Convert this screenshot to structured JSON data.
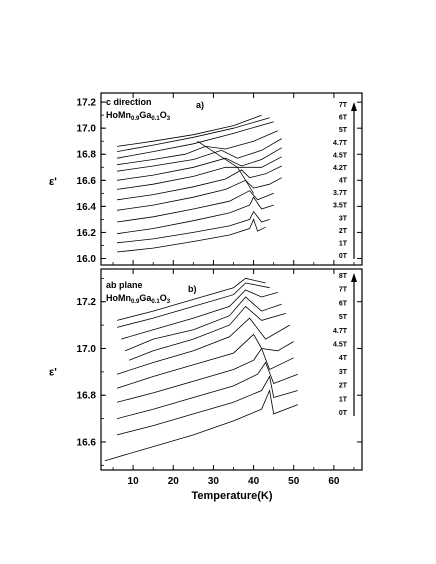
{
  "chart_data": [
    {
      "type": "line",
      "panel_label": "a)",
      "title_line1": "c direction",
      "title_formula": "HoMn0.9Ga0.1O3",
      "formula_parts": [
        [
          "HoMn",
          ""
        ],
        [
          "0.9",
          "sub"
        ],
        [
          "Ga",
          ""
        ],
        [
          "0.1",
          "sub"
        ],
        [
          "O",
          ""
        ],
        [
          "3",
          "sub"
        ]
      ],
      "xlabel": "",
      "ylabel": "ε'",
      "xlim": [
        2,
        67
      ],
      "ylim": [
        15.95,
        17.27
      ],
      "y_ticks": [
        "16.0",
        "16.2",
        "16.4",
        "16.6",
        "16.8",
        "17.0",
        "17.2"
      ],
      "x_ticks": [
        "10",
        "20",
        "30",
        "40",
        "50",
        "60"
      ],
      "field_labels": [
        "7T",
        "6T",
        "5T",
        "4.7T",
        "4.5T",
        "4.2T",
        "4T",
        "3.7T",
        "3.5T",
        "3T",
        "2T",
        "1T",
        "0T"
      ],
      "series": [
        {
          "name": "7T",
          "x": [
            6,
            15,
            25,
            35,
            42
          ],
          "y": [
            16.86,
            16.9,
            16.95,
            17.02,
            17.1
          ]
        },
        {
          "name": "6T",
          "x": [
            6,
            15,
            25,
            35,
            44
          ],
          "y": [
            16.82,
            16.87,
            16.93,
            17.0,
            17.08
          ]
        },
        {
          "name": "5T",
          "x": [
            6,
            15,
            25,
            35,
            45
          ],
          "y": [
            16.77,
            16.82,
            16.88,
            16.96,
            17.05
          ]
        },
        {
          "name": "4.7T",
          "x": [
            6,
            15,
            23,
            28,
            33,
            40,
            46
          ],
          "y": [
            16.72,
            16.76,
            16.8,
            16.86,
            16.84,
            16.9,
            16.98
          ]
        },
        {
          "name": "4.5T",
          "x": [
            6,
            15,
            25,
            32,
            36,
            42,
            47
          ],
          "y": [
            16.67,
            16.71,
            16.76,
            16.83,
            16.77,
            16.83,
            16.92
          ]
        },
        {
          "name": "4.2T",
          "x": [
            6,
            15,
            25,
            33,
            37,
            42,
            47
          ],
          "y": [
            16.6,
            16.64,
            16.7,
            16.77,
            16.71,
            16.76,
            16.85
          ]
        },
        {
          "name": "4T",
          "x": [
            6,
            15,
            25,
            33,
            37,
            42,
            47
          ],
          "y": [
            16.53,
            16.57,
            16.63,
            16.7,
            16.7,
            16.7,
            16.78
          ]
        },
        {
          "name": "3.7T",
          "x": [
            6,
            15,
            25,
            33,
            37,
            39,
            43,
            47
          ],
          "y": [
            16.45,
            16.49,
            16.55,
            16.61,
            16.68,
            16.62,
            16.65,
            16.71
          ]
        },
        {
          "name": "3.5T",
          "x": [
            6,
            15,
            25,
            33,
            38,
            40,
            44,
            47
          ],
          "y": [
            16.37,
            16.41,
            16.47,
            16.53,
            16.6,
            16.54,
            16.57,
            16.62
          ]
        },
        {
          "name": "3T",
          "x": [
            6,
            15,
            25,
            34,
            39,
            41,
            45
          ],
          "y": [
            16.28,
            16.32,
            16.38,
            16.44,
            16.52,
            16.45,
            16.5
          ]
        },
        {
          "name": "2T",
          "x": [
            6,
            15,
            25,
            34,
            39,
            40,
            42,
            45
          ],
          "y": [
            16.19,
            16.23,
            16.29,
            16.35,
            16.41,
            16.47,
            16.38,
            16.41
          ]
        },
        {
          "name": "1T",
          "x": [
            6,
            15,
            25,
            34,
            39,
            40,
            42,
            44
          ],
          "y": [
            16.12,
            16.15,
            16.2,
            16.25,
            16.3,
            16.36,
            16.28,
            16.3
          ]
        },
        {
          "name": "0T",
          "x": [
            6,
            15,
            25,
            34,
            39,
            40,
            41,
            43
          ],
          "y": [
            16.05,
            16.08,
            16.13,
            16.18,
            16.23,
            16.3,
            16.21,
            16.24
          ]
        }
      ],
      "peak_guide": {
        "x": [
          26,
          31,
          36,
          40
        ],
        "y": [
          16.9,
          16.8,
          16.7,
          16.5
        ]
      }
    },
    {
      "type": "line",
      "panel_label": "b)",
      "title_line1": "ab plane",
      "title_formula": "HoMn0.9Ga0.1O3",
      "formula_parts": [
        [
          "HoMn",
          ""
        ],
        [
          "0.9",
          "sub"
        ],
        [
          "Ga",
          ""
        ],
        [
          "0.1",
          "sub"
        ],
        [
          "O",
          ""
        ],
        [
          "3",
          "sub"
        ]
      ],
      "xlabel": "Temperature(K)",
      "ylabel": "ε'",
      "xlim": [
        2,
        67
      ],
      "ylim": [
        16.48,
        17.34
      ],
      "y_ticks": [
        "16.6",
        "16.8",
        "17.0",
        "17.2"
      ],
      "x_ticks": [
        "10",
        "20",
        "30",
        "40",
        "50",
        "60"
      ],
      "field_labels": [
        "8T",
        "7T",
        "6T",
        "5T",
        "4.7T",
        "4.5T",
        "4T",
        "3T",
        "2T",
        "1T",
        "0T"
      ],
      "series": [
        {
          "name": "8T",
          "x": [
            6,
            15,
            25,
            35,
            38,
            43
          ],
          "y": [
            17.12,
            17.16,
            17.21,
            17.26,
            17.3,
            17.28
          ]
        },
        {
          "name": "7T",
          "x": [
            6,
            15,
            25,
            35,
            38,
            44
          ],
          "y": [
            17.09,
            17.13,
            17.18,
            17.23,
            17.28,
            17.26
          ]
        },
        {
          "name": "6T",
          "x": [
            7,
            15,
            25,
            34,
            38,
            42,
            46
          ],
          "y": [
            17.04,
            17.08,
            17.13,
            17.18,
            17.25,
            17.22,
            17.24
          ]
        },
        {
          "name": "5T",
          "x": [
            8,
            15,
            25,
            34,
            38,
            42,
            47
          ],
          "y": [
            16.99,
            17.04,
            17.08,
            17.14,
            17.22,
            17.16,
            17.19
          ]
        },
        {
          "name": "4.7T",
          "x": [
            9,
            15,
            25,
            34,
            38,
            42,
            48
          ],
          "y": [
            16.95,
            16.99,
            17.04,
            17.1,
            17.18,
            17.12,
            17.15
          ]
        },
        {
          "name": "4.5T",
          "x": [
            6,
            15,
            25,
            34,
            39,
            43,
            49
          ],
          "y": [
            16.89,
            16.94,
            16.99,
            17.05,
            17.13,
            17.04,
            17.1
          ]
        },
        {
          "name": "4T",
          "x": [
            6,
            15,
            25,
            35,
            40,
            42,
            46,
            50
          ],
          "y": [
            16.83,
            16.88,
            16.93,
            16.98,
            17.06,
            17.0,
            16.99,
            17.03
          ]
        },
        {
          "name": "3T",
          "x": [
            6,
            15,
            25,
            35,
            40,
            42,
            44,
            50
          ],
          "y": [
            16.77,
            16.81,
            16.86,
            16.91,
            16.95,
            17.0,
            16.91,
            16.96
          ]
        },
        {
          "name": "2T",
          "x": [
            6,
            15,
            25,
            35,
            41,
            43,
            45,
            51
          ],
          "y": [
            16.7,
            16.74,
            16.79,
            16.84,
            16.89,
            16.94,
            16.85,
            16.89
          ]
        },
        {
          "name": "1T",
          "x": [
            6,
            15,
            25,
            35,
            42,
            44,
            45,
            51
          ],
          "y": [
            16.63,
            16.67,
            16.72,
            16.77,
            16.82,
            16.88,
            16.79,
            16.82
          ]
        },
        {
          "name": "0T",
          "x": [
            3,
            15,
            25,
            35,
            42,
            44,
            45,
            51
          ],
          "y": [
            16.52,
            16.58,
            16.63,
            16.69,
            16.74,
            16.82,
            16.72,
            16.76
          ]
        }
      ]
    }
  ]
}
